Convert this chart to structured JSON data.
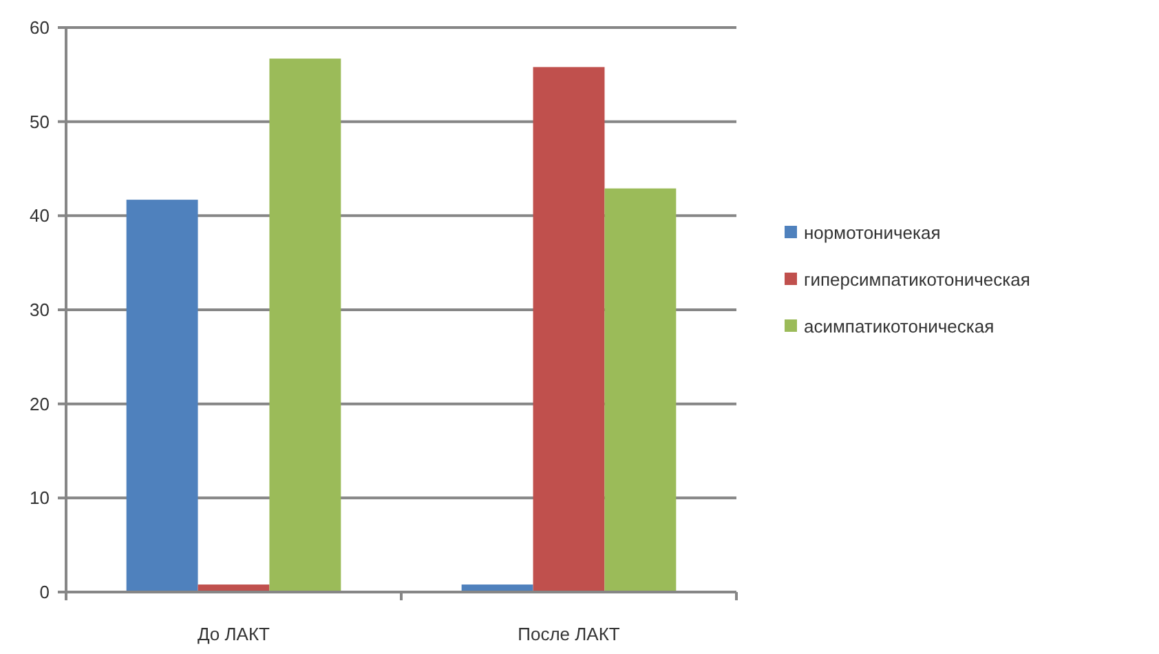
{
  "chart_data": {
    "type": "bar",
    "categories": [
      "До ЛАКТ",
      "После ЛАКТ"
    ],
    "series": [
      {
        "name": "нормотоничекая",
        "color": "#4f81bd",
        "values": [
          41.7,
          0.8
        ]
      },
      {
        "name": "гиперсимпатикотоническая",
        "color": "#c0504d",
        "values": [
          0.8,
          55.8
        ]
      },
      {
        "name": "асимпатикотоническая",
        "color": "#9bbb59",
        "values": [
          56.7,
          42.9
        ]
      }
    ],
    "ylim": [
      0,
      60
    ],
    "yticks": [
      0,
      10,
      20,
      30,
      40,
      50,
      60
    ],
    "grid": "y",
    "legend": "right"
  }
}
